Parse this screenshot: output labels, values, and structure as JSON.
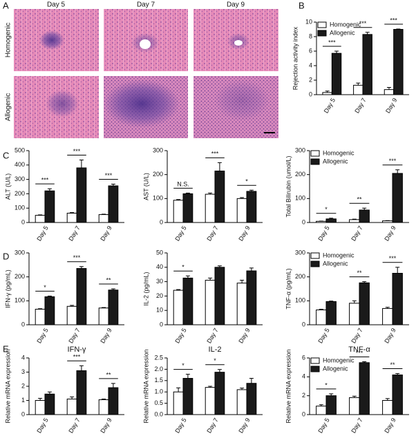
{
  "panel_labels": [
    "A",
    "B",
    "C",
    "D",
    "E"
  ],
  "histology": {
    "columns": [
      "Day 5",
      "Day 7",
      "Day 9"
    ],
    "rows": [
      "Homogenic",
      "Allogenic"
    ]
  },
  "chart_data": [
    {
      "type": "bar",
      "y_label": "Rejection activity index",
      "categories": [
        "Day 5",
        "Day 7",
        "Day 9"
      ],
      "series": [
        {
          "name": "Homogenic",
          "color": "#ffffff",
          "values": [
            0.3,
            1.3,
            0.7
          ],
          "errors": [
            0.2,
            0.3,
            0.3
          ]
        },
        {
          "name": "Allogenic",
          "color": "#1a1a1a",
          "values": [
            5.7,
            8.3,
            9.0
          ],
          "errors": [
            0.3,
            0.3,
            0.05
          ]
        }
      ],
      "ylim": [
        0,
        10
      ],
      "yticks": [
        0,
        2,
        4,
        6,
        8,
        10
      ],
      "significance": [
        "***",
        "***",
        "***"
      ],
      "legend": "top-left"
    },
    {
      "type": "bar",
      "y_label": "ALT  (U/L)",
      "categories": [
        "Day 5",
        "Day 7",
        "Day 9"
      ],
      "series": [
        {
          "color": "#ffffff",
          "values": [
            50,
            65,
            55
          ],
          "errors": [
            3,
            4,
            3
          ]
        },
        {
          "color": "#1a1a1a",
          "values": [
            220,
            380,
            255
          ],
          "errors": [
            15,
            55,
            12
          ]
        }
      ],
      "ylim": [
        0,
        500
      ],
      "yticks": [
        0,
        100,
        200,
        300,
        400,
        500
      ],
      "significance": [
        "***",
        "***",
        "***"
      ]
    },
    {
      "type": "bar",
      "y_label": "AST  (U/L)",
      "categories": [
        "Day 5",
        "Day 7",
        "Day 9"
      ],
      "series": [
        {
          "color": "#ffffff",
          "values": [
            93,
            118,
            100
          ],
          "errors": [
            3,
            5,
            4
          ]
        },
        {
          "color": "#1a1a1a",
          "values": [
            120,
            215,
            130
          ],
          "errors": [
            3,
            35,
            5
          ]
        }
      ],
      "ylim": [
        0,
        300
      ],
      "yticks": [
        0,
        100,
        200,
        300
      ],
      "significance": [
        "N.S.",
        "***",
        "*"
      ]
    },
    {
      "type": "bar",
      "y_label": "Total Bilirubin  (umol/L)",
      "categories": [
        "Day 5",
        "Day 7",
        "Day 9"
      ],
      "series": [
        {
          "name": "Homogenic",
          "color": "#ffffff",
          "values": [
            5,
            12,
            7
          ],
          "errors": [
            1,
            2,
            1
          ]
        },
        {
          "name": "Allogenic",
          "color": "#1a1a1a",
          "values": [
            15,
            52,
            205
          ],
          "errors": [
            3,
            8,
            15
          ]
        }
      ],
      "ylim": [
        0,
        300
      ],
      "yticks": [
        0,
        100,
        200,
        300
      ],
      "significance": [
        "*",
        "**",
        "***"
      ],
      "legend": "top-left"
    },
    {
      "type": "bar",
      "y_label": "IFN-γ  (pg/mL)",
      "categories": [
        "Day 5",
        "Day 7",
        "Day 9"
      ],
      "series": [
        {
          "color": "#ffffff",
          "values": [
            65,
            77,
            70
          ],
          "errors": [
            2,
            4,
            2
          ]
        },
        {
          "color": "#1a1a1a",
          "values": [
            117,
            235,
            145
          ],
          "errors": [
            3,
            8,
            5
          ]
        }
      ],
      "ylim": [
        0,
        300
      ],
      "yticks": [
        0,
        100,
        200,
        300
      ],
      "significance": [
        "*",
        "***",
        "**"
      ]
    },
    {
      "type": "bar",
      "y_label": "IL-2  (pg/mL)",
      "categories": [
        "Day 5",
        "Day 7",
        "Day 9"
      ],
      "series": [
        {
          "color": "#ffffff",
          "values": [
            24,
            31,
            29
          ],
          "errors": [
            0.5,
            1.5,
            2
          ]
        },
        {
          "color": "#1a1a1a",
          "values": [
            32.5,
            40,
            37.5
          ],
          "errors": [
            1.5,
            1,
            2
          ]
        }
      ],
      "ylim": [
        0,
        50
      ],
      "yticks": [
        0,
        10,
        20,
        30,
        40,
        50
      ],
      "significance": [
        "*",
        null,
        null
      ]
    },
    {
      "type": "bar",
      "y_label": "TNF-α  (pg/mL)",
      "categories": [
        "Day 5",
        "Day 7",
        "Day 9"
      ],
      "series": [
        {
          "name": "Homogenic",
          "color": "#ffffff",
          "values": [
            62,
            90,
            68
          ],
          "errors": [
            3,
            10,
            5
          ]
        },
        {
          "name": "Allogenic",
          "color": "#1a1a1a",
          "values": [
            97,
            175,
            215
          ],
          "errors": [
            2,
            5,
            25
          ]
        }
      ],
      "ylim": [
        0,
        300
      ],
      "yticks": [
        0,
        100,
        200,
        300
      ],
      "significance": [
        null,
        "**",
        "***"
      ],
      "legend": "top-left"
    },
    {
      "type": "bar",
      "title": "IFN-γ",
      "y_label": "Relative mRNA expression",
      "categories": [
        "Day 5",
        "Day 7",
        "Day 9"
      ],
      "series": [
        {
          "color": "#ffffff",
          "values": [
            1.0,
            1.1,
            1.05
          ],
          "errors": [
            0.15,
            0.15,
            0.05
          ]
        },
        {
          "color": "#1a1a1a",
          "values": [
            1.45,
            3.1,
            1.9
          ],
          "errors": [
            0.15,
            0.35,
            0.3
          ]
        }
      ],
      "ylim": [
        0,
        4
      ],
      "yticks": [
        0,
        1,
        2,
        3,
        4
      ],
      "significance": [
        null,
        "***",
        "**"
      ]
    },
    {
      "type": "bar",
      "title": "IL-2",
      "y_label": "Relative mRNA expression",
      "categories": [
        "Day 5",
        "Day 7",
        "Day 9"
      ],
      "series": [
        {
          "color": "#ffffff",
          "values": [
            1.0,
            1.2,
            1.1
          ],
          "errors": [
            0.18,
            0.05,
            0.07
          ]
        },
        {
          "color": "#1a1a1a",
          "values": [
            1.6,
            1.87,
            1.38
          ],
          "errors": [
            0.18,
            0.12,
            0.22
          ]
        }
      ],
      "ylim": [
        0,
        2.5
      ],
      "yticks": [
        {
          "value": 0,
          "label": "0.0"
        },
        {
          "value": 0.5,
          "label": "0.5"
        },
        {
          "value": 1,
          "label": "1.0"
        },
        {
          "value": 1.5,
          "label": "1.5"
        },
        {
          "value": 2,
          "label": "2.0"
        },
        {
          "value": 2.5,
          "label": "2.5"
        }
      ],
      "significance": [
        "*",
        "*",
        null
      ]
    },
    {
      "type": "bar",
      "title": "TNF-α",
      "y_label": "Relative mRNA expression",
      "categories": [
        "Day 5",
        "Day 7",
        "Day 9"
      ],
      "series": [
        {
          "name": "Homogenic",
          "color": "#ffffff",
          "values": [
            0.9,
            1.8,
            1.5
          ],
          "errors": [
            0.15,
            0.15,
            0.2
          ]
        },
        {
          "name": "Allogenic",
          "color": "#1a1a1a",
          "values": [
            2.0,
            5.5,
            4.2
          ],
          "errors": [
            0.2,
            0.1,
            0.15
          ]
        }
      ],
      "ylim": [
        0,
        6
      ],
      "yticks": [
        0,
        2,
        4,
        6
      ],
      "significance": [
        "*",
        "***",
        "**"
      ],
      "legend": "top-left"
    }
  ]
}
